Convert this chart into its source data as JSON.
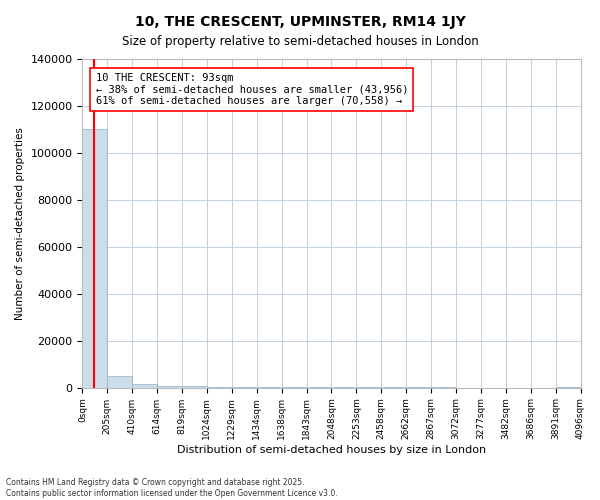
{
  "title": "10, THE CRESCENT, UPMINSTER, RM14 1JY",
  "subtitle": "Size of property relative to semi-detached houses in London",
  "xlabel": "Distribution of semi-detached houses by size in London",
  "ylabel": "Number of semi-detached properties",
  "property_label": "10 THE CRESCENT: 93sqm",
  "annotation_text_1": "← 38% of semi-detached houses are smaller (43,956)",
  "annotation_text_2": "61% of semi-detached houses are larger (70,558) →",
  "bar_color": "#ccdce8",
  "bar_edge_color": "#90b0cc",
  "vline_color": "red",
  "annotation_box_facecolor": "white",
  "annotation_box_edgecolor": "red",
  "footer_line1": "Contains HM Land Registry data © Crown copyright and database right 2025.",
  "footer_line2": "Contains public sector information licensed under the Open Government Licence v3.0.",
  "bins": [
    0,
    205,
    410,
    614,
    819,
    1024,
    1229,
    1434,
    1638,
    1843,
    2048,
    2253,
    2458,
    2662,
    2867,
    3072,
    3277,
    3482,
    3686,
    3891,
    4096
  ],
  "counts": [
    110000,
    5000,
    1500,
    800,
    600,
    450,
    350,
    250,
    200,
    160,
    130,
    100,
    80,
    60,
    45,
    35,
    25,
    18,
    12,
    200
  ],
  "ylim": [
    0,
    140000
  ],
  "yticks": [
    0,
    20000,
    40000,
    60000,
    80000,
    100000,
    120000,
    140000
  ],
  "xlim": [
    0,
    4096
  ],
  "property_x": 93,
  "background_color": "#ffffff",
  "grid_color": "#c0d0e0",
  "figwidth": 6.0,
  "figheight": 5.0,
  "dpi": 100
}
